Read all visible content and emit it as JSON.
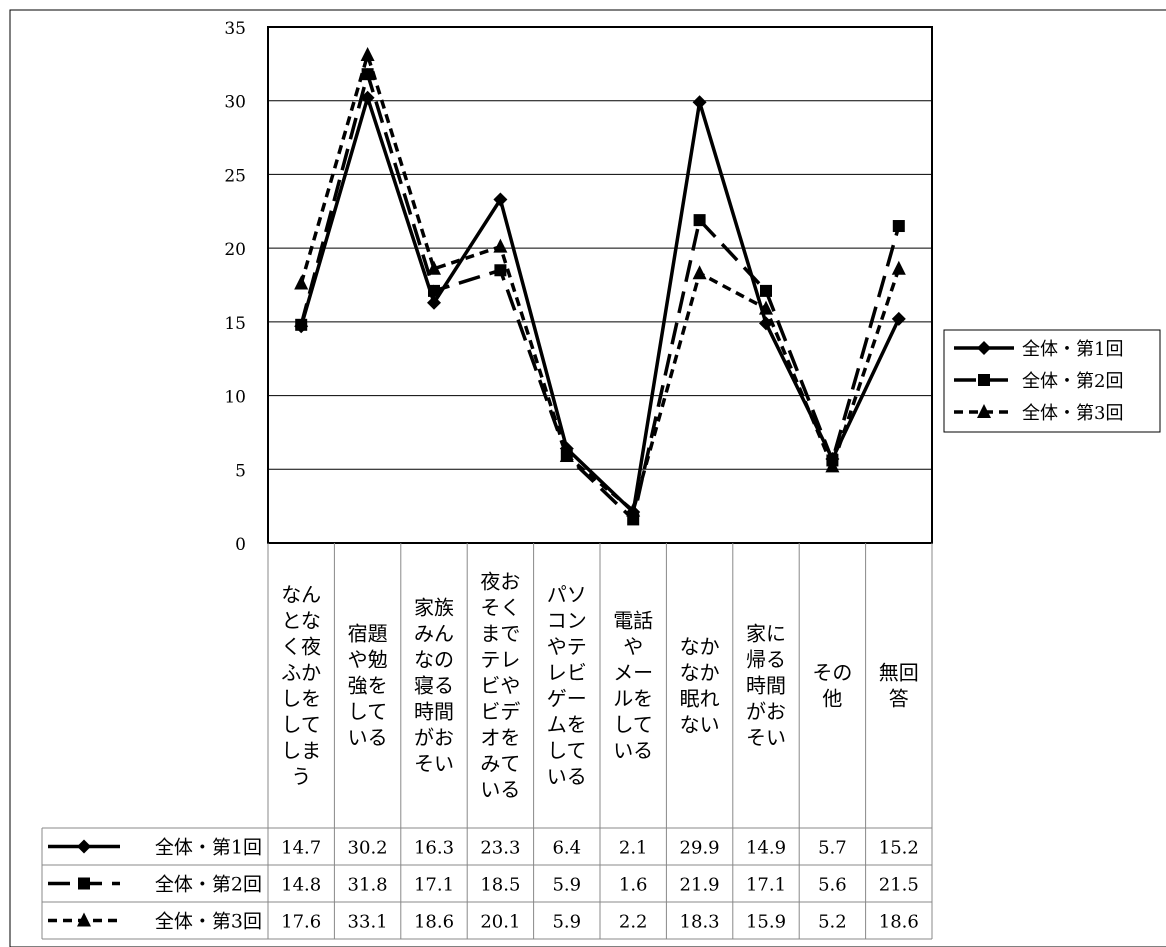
{
  "chart_data": {
    "type": "line",
    "title": "",
    "xlabel": "",
    "ylabel": "",
    "ylim": [
      0,
      35
    ],
    "yticks": [
      0,
      5,
      10,
      15,
      20,
      25,
      30,
      35
    ],
    "grid": true,
    "legend": "right",
    "categories": [
      "なんとなく夜ふかしをしてしまう",
      "宿題や勉強をしている",
      "家族みんなの寝る時間がおそい",
      "夜おそくまでテレビやビデオをみている",
      "パソコンやテレビゲームをしている",
      "電話やメールをしている",
      "なかなか眠れない",
      "家に帰る時間がおそい",
      "その他",
      "無回答"
    ],
    "category_lines": [
      [
        "なん",
        "とな",
        "く夜",
        "ふか",
        "しを",
        "して",
        "しま",
        "う"
      ],
      [
        "宿題",
        "や勉",
        "強を",
        "して",
        "いる"
      ],
      [
        "家族",
        "みん",
        "なの",
        "寝る",
        "時間",
        "がお",
        "そい"
      ],
      [
        "夜お",
        "そく",
        "まで",
        "テレ",
        "ビや",
        "ビデ",
        "オを",
        "みて",
        "いる"
      ],
      [
        "パソ",
        "コン",
        "やテ",
        "レビ",
        "ゲー",
        "ムを",
        "して",
        "いる"
      ],
      [
        "電話",
        "や",
        "メー",
        "ルを",
        "して",
        "いる"
      ],
      [
        "なか",
        "なか",
        "眠れ",
        "ない"
      ],
      [
        "家に",
        "帰る",
        "時間",
        "がお",
        "そい"
      ],
      [
        "その",
        "他"
      ],
      [
        "無回",
        "答"
      ]
    ],
    "series": [
      {
        "name": "全体・第1回",
        "marker": "diamond",
        "values": [
          14.7,
          30.2,
          16.3,
          23.3,
          6.4,
          2.1,
          29.9,
          14.9,
          5.7,
          15.2
        ],
        "table_values": [
          "14.7",
          "30.2",
          "16.3",
          "23.3",
          "6.4",
          "2.1",
          "29.9",
          "14.9",
          "5.7",
          "15.2"
        ]
      },
      {
        "name": "全体・第2回",
        "marker": "square",
        "values": [
          14.8,
          31.8,
          17.1,
          18.5,
          5.9,
          1.6,
          21.9,
          17.1,
          5.6,
          21.5
        ],
        "table_values": [
          "14.8",
          "31.8",
          "17.1",
          "18.5",
          "5.9",
          "1.6",
          "21.9",
          "17.1",
          "5.6",
          "21.5"
        ]
      },
      {
        "name": "全体・第3回",
        "marker": "triangle",
        "values": [
          17.6,
          33.1,
          18.6,
          20.1,
          5.9,
          2.2,
          18.3,
          15.9,
          5.2,
          18.6
        ],
        "table_values": [
          "17.6",
          "33.1",
          "18.6",
          "20.1",
          "5.9",
          "2.2",
          "18.3",
          "15.9",
          "5.2",
          "18.6"
        ]
      }
    ]
  }
}
